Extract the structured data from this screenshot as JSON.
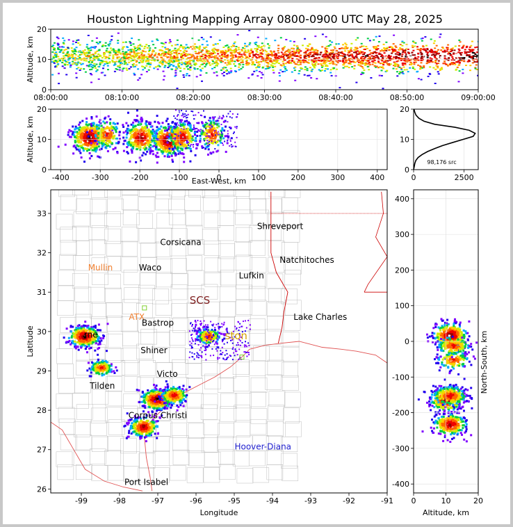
{
  "chart_data": {
    "title": "Houston Lightning Mapping Array 0800-0900 UTC May 28, 2025",
    "type": "scatter",
    "panels": {
      "time_height": {
        "ylabel": "Altitude, km",
        "xticks": [
          "08:00:00",
          "08:10:00",
          "08:20:00",
          "08:30:00",
          "08:40:00",
          "08:50:00",
          "09:00:00"
        ],
        "xlim_minutes": [
          0,
          60
        ],
        "ylim": [
          0,
          20
        ],
        "yticks": [
          0,
          10,
          20
        ]
      },
      "ew_height": {
        "xlabel": "East-West, km",
        "ylabel": "Altitude, km",
        "xlim": [
          -425,
          425
        ],
        "xticks": [
          -400,
          -300,
          -200,
          -100,
          0,
          100,
          200,
          300,
          400
        ],
        "ylim": [
          0,
          20
        ],
        "yticks": [
          0,
          10,
          20
        ]
      },
      "histogram": {
        "xlim": [
          0,
          3200
        ],
        "xticks": [
          0,
          2500
        ],
        "ylim": [
          0,
          20
        ],
        "yticks": [
          0,
          10,
          20
        ],
        "annotation": "98,176 src"
      },
      "plan": {
        "xlabel": "Longitude",
        "ylabel": "Latitude",
        "xlim": [
          -99.8,
          -91
        ],
        "ylim": [
          25.9,
          33.6
        ],
        "xticks": [
          -99,
          -98,
          -97,
          -96,
          -95,
          -94,
          -93,
          -92,
          -91
        ],
        "yticks": [
          26,
          27,
          28,
          29,
          30,
          31,
          32,
          33
        ]
      },
      "ns_height": {
        "xlabel": "Altitude, km",
        "ylabel": "North-South, km",
        "xlim": [
          0,
          20
        ],
        "xticks": [
          0,
          10,
          20
        ],
        "ylim": [
          -425,
          425
        ],
        "yticks": [
          -400,
          -300,
          -200,
          -100,
          0,
          100,
          200,
          300,
          400
        ]
      }
    },
    "places": [
      {
        "name": "Shreveport",
        "lon": -93.8,
        "lat": 32.6,
        "color": "#000000"
      },
      {
        "name": "Corsicana",
        "lon": -96.4,
        "lat": 32.2,
        "color": "#000000"
      },
      {
        "name": "Natchitoches",
        "lon": -93.1,
        "lat": 31.75,
        "color": "#000000"
      },
      {
        "name": "Mullin",
        "lon": -98.5,
        "lat": 31.55,
        "color": "#f07f2f"
      },
      {
        "name": "Waco",
        "lon": -97.2,
        "lat": 31.55,
        "color": "#000000"
      },
      {
        "name": "Lufkin",
        "lon": -94.55,
        "lat": 31.35,
        "color": "#000000"
      },
      {
        "name": "SCS",
        "lon": -95.9,
        "lat": 30.7,
        "color": "#7f1f1f"
      },
      {
        "name": "ATX",
        "lon": -97.55,
        "lat": 30.3,
        "color": "#f07f2f"
      },
      {
        "name": "Bastrop",
        "lon": -97.0,
        "lat": 30.15,
        "color": "#000000"
      },
      {
        "name": "Lake Charles",
        "lon": -92.75,
        "lat": 30.3,
        "color": "#000000"
      },
      {
        "name": "rne",
        "lon": -98.75,
        "lat": 29.85,
        "color": "#000000"
      },
      {
        "name": "ston",
        "lon": -94.95,
        "lat": 29.8,
        "color": "#d4a000"
      },
      {
        "name": "Shiner",
        "lon": -97.1,
        "lat": 29.45,
        "color": "#000000"
      },
      {
        "name": "Victo",
        "lon": -96.75,
        "lat": 28.85,
        "color": "#000000"
      },
      {
        "name": "Tilden",
        "lon": -98.45,
        "lat": 28.55,
        "color": "#000000"
      },
      {
        "name": "Corpus Christi",
        "lon": -97.0,
        "lat": 27.8,
        "color": "#000000"
      },
      {
        "name": "Hoover-Diana",
        "lon": -94.25,
        "lat": 27.0,
        "color": "#1f1fcf"
      },
      {
        "name": "Port Isabel",
        "lon": -97.3,
        "lat": 26.1,
        "color": "#000000"
      }
    ],
    "stations": [
      {
        "lon": -97.35,
        "lat": 30.6,
        "color": "#7fcf2f"
      },
      {
        "lon": -94.8,
        "lat": 29.35,
        "color": "#7fcf2f"
      }
    ],
    "clusters": [
      {
        "lon": -98.95,
        "lat": 29.9,
        "ew": -330,
        "ns": 20,
        "alt": 11,
        "size": 1.0,
        "t0": 0,
        "t1": 60
      },
      {
        "lon": -97.05,
        "lat": 28.3,
        "ew": -130,
        "ns": -160,
        "alt": 10,
        "size": 1.0,
        "t0": 10,
        "t1": 60
      },
      {
        "lon": -97.4,
        "lat": 27.6,
        "ew": -200,
        "ns": -230,
        "alt": 11,
        "size": 0.8,
        "t0": 5,
        "t1": 60
      },
      {
        "lon": -96.6,
        "lat": 28.4,
        "ew": -95,
        "ns": -150,
        "alt": 11,
        "size": 0.6,
        "t0": 15,
        "t1": 60
      },
      {
        "lon": -98.5,
        "lat": 29.1,
        "ew": -285,
        "ns": -50,
        "alt": 12,
        "size": 0.4,
        "t0": 0,
        "t1": 40
      },
      {
        "lon": -95.7,
        "lat": 29.9,
        "ew": -20,
        "ns": -10,
        "alt": 12,
        "size": 0.45,
        "t0": 20,
        "t1": 60
      }
    ],
    "histogram_profile": [
      [
        0,
        0
      ],
      [
        1,
        30
      ],
      [
        2,
        60
      ],
      [
        3,
        110
      ],
      [
        4,
        220
      ],
      [
        5,
        420
      ],
      [
        6,
        700
      ],
      [
        7,
        1050
      ],
      [
        8,
        1450
      ],
      [
        9,
        1950
      ],
      [
        10,
        2450
      ],
      [
        11,
        2950
      ],
      [
        12,
        3050
      ],
      [
        13,
        2750
      ],
      [
        14,
        2050
      ],
      [
        15,
        1050
      ],
      [
        16,
        520
      ],
      [
        17,
        260
      ],
      [
        18,
        120
      ],
      [
        19,
        60
      ],
      [
        20,
        20
      ]
    ]
  }
}
